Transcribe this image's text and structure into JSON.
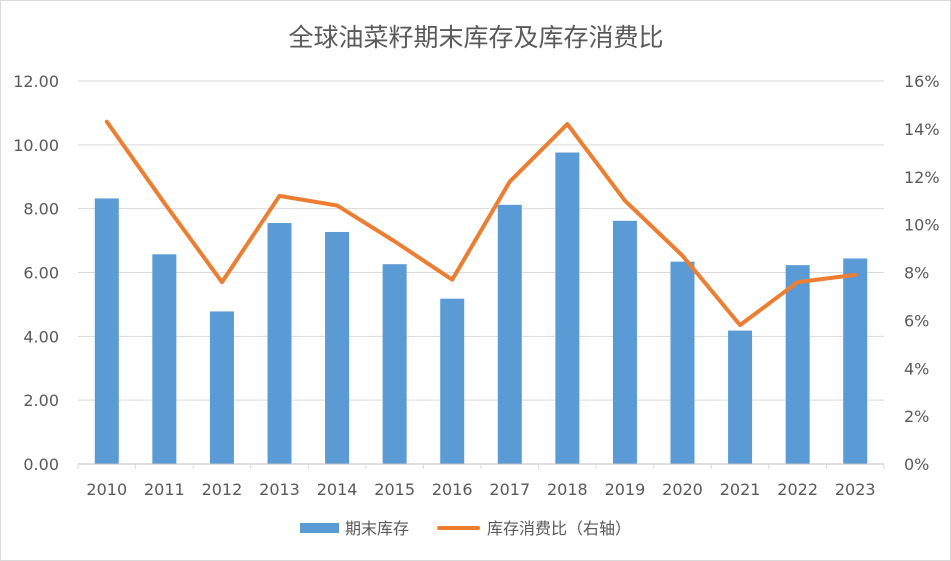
{
  "chart_data": {
    "type": "bar+line",
    "title": "全球油菜籽期末库存及库存消费比",
    "categories": [
      "2010",
      "2011",
      "2012",
      "2013",
      "2014",
      "2015",
      "2016",
      "2017",
      "2018",
      "2019",
      "2020",
      "2021",
      "2022",
      "2023"
    ],
    "series": [
      {
        "name": "期末库存",
        "type": "bar",
        "axis": "left",
        "color": "#5b9bd5",
        "values": [
          8.32,
          6.57,
          4.78,
          7.55,
          7.27,
          6.26,
          5.18,
          8.12,
          9.76,
          7.62,
          6.34,
          4.18,
          6.23,
          6.44
        ]
      },
      {
        "name": "库存消费比（右轴）",
        "type": "line",
        "axis": "right",
        "color": "#ed7d31",
        "values": [
          14.3,
          10.9,
          7.6,
          11.2,
          10.8,
          9.3,
          7.7,
          11.8,
          14.2,
          11.0,
          8.7,
          5.8,
          7.6,
          7.9
        ]
      }
    ],
    "y_left": {
      "min": 0,
      "max": 12,
      "ticks": [
        "0.00",
        "2.00",
        "4.00",
        "6.00",
        "8.00",
        "10.00",
        "12.00"
      ]
    },
    "y_right": {
      "min": 0,
      "max": 16,
      "ticks": [
        "0%",
        "2%",
        "4%",
        "6%",
        "8%",
        "10%",
        "12%",
        "14%",
        "16%"
      ]
    },
    "grid": true,
    "legend": "bottom-center"
  }
}
